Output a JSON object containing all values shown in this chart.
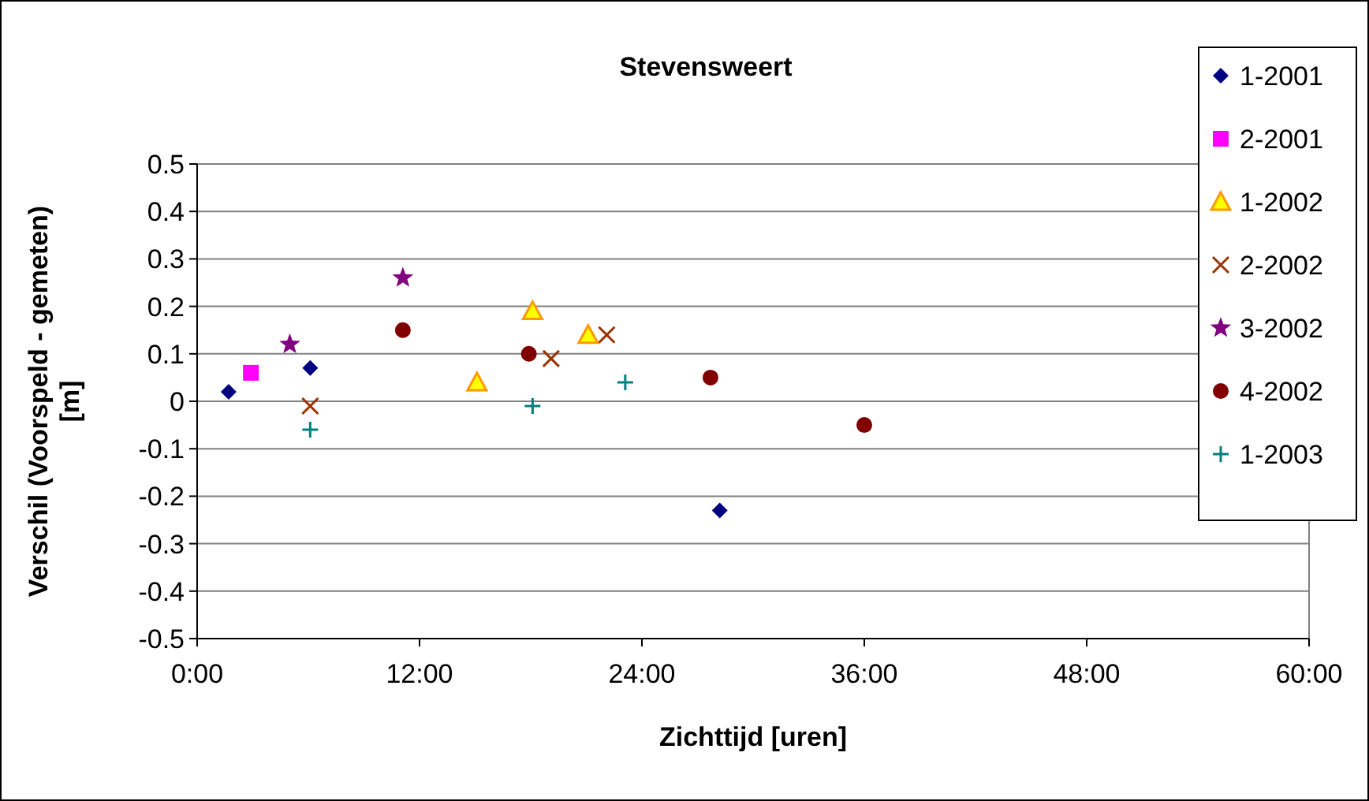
{
  "chart_data": {
    "type": "scatter",
    "title": "Stevensweert",
    "xlabel": "Zichttijd [uren]",
    "ylabel": "Verschil (Voorspeld - gemeten) [m]",
    "xlim": [
      0,
      60
    ],
    "xticks": [
      {
        "value": 0,
        "label": "0:00"
      },
      {
        "value": 12,
        "label": "12:00"
      },
      {
        "value": 24,
        "label": "24:00"
      },
      {
        "value": 36,
        "label": "36:00"
      },
      {
        "value": 48,
        "label": "48:00"
      },
      {
        "value": 60,
        "label": "60:00"
      }
    ],
    "ylim": [
      -0.5,
      0.5
    ],
    "yticks": [
      -0.5,
      -0.4,
      -0.3,
      -0.2,
      -0.1,
      0,
      0.1,
      0.2,
      0.3,
      0.4,
      0.5
    ],
    "grid": "y",
    "legend": "right",
    "series": [
      {
        "name": "1-2001",
        "color": "#000080",
        "marker": "diamond",
        "x": [
          1.7,
          6.1,
          28.2
        ],
        "values": [
          0.02,
          0.07,
          -0.23
        ]
      },
      {
        "name": "2-2001",
        "color": "#ff00ff",
        "marker": "square",
        "x": [
          2.9
        ],
        "values": [
          0.06
        ]
      },
      {
        "name": "1-2002",
        "color": "#ff9900",
        "marker": "triangle",
        "x": [
          15.1,
          18.1,
          21.1
        ],
        "values": [
          0.04,
          0.19,
          0.14
        ]
      },
      {
        "name": "2-2002",
        "color": "#993300",
        "marker": "cross",
        "x": [
          6.1,
          19.1,
          22.1
        ],
        "values": [
          -0.01,
          0.09,
          0.14
        ]
      },
      {
        "name": "3-2002",
        "color": "#800080",
        "marker": "star",
        "x": [
          5.0,
          11.1
        ],
        "values": [
          0.12,
          0.26
        ]
      },
      {
        "name": "4-2002",
        "color": "#800000",
        "marker": "circle",
        "x": [
          11.1,
          17.9,
          27.7,
          36.0
        ],
        "values": [
          0.15,
          0.1,
          0.05,
          -0.05
        ]
      },
      {
        "name": "1-2003",
        "color": "#008080",
        "marker": "plus",
        "x": [
          6.1,
          18.1,
          23.1
        ],
        "values": [
          -0.06,
          -0.01,
          0.04
        ]
      }
    ]
  }
}
